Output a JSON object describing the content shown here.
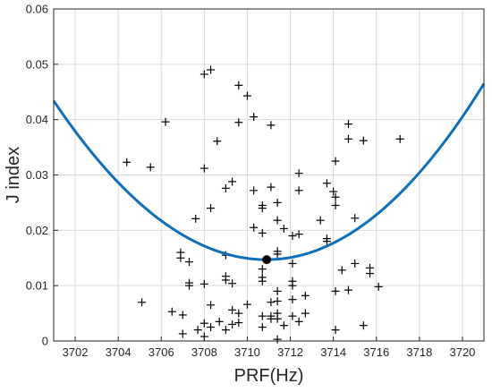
{
  "chart_data": {
    "type": "scatter",
    "title": "",
    "xlabel": "PRF(Hz)",
    "ylabel": "J index",
    "xlim": [
      3701,
      3721
    ],
    "ylim": [
      0,
      0.06
    ],
    "xticks": [
      "3702",
      "3704",
      "3706",
      "3708",
      "3710",
      "3712",
      "3714",
      "3716",
      "3718",
      "3720"
    ],
    "yticks": [
      "0",
      "0.01",
      "0.02",
      "0.03",
      "0.04",
      "0.05",
      "0.06"
    ],
    "grid": true,
    "colors": {
      "curve": "#0e6fb8",
      "marker": "#000000",
      "grid": "#d9d9d9",
      "axis": "#262626"
    },
    "series": [
      {
        "kind": "scatter",
        "marker": "plus",
        "points": [
          [
            3704.4,
            0.0323
          ],
          [
            3705.1,
            0.007
          ],
          [
            3705.5,
            0.0314
          ],
          [
            3706.2,
            0.0396
          ],
          [
            3706.5,
            0.0053
          ],
          [
            3706.9,
            0.016
          ],
          [
            3706.9,
            0.015
          ],
          [
            3707.0,
            0.0013
          ],
          [
            3707.0,
            0.0047
          ],
          [
            3707.3,
            0.0105
          ],
          [
            3707.3,
            0.01
          ],
          [
            3707.3,
            0.0143
          ],
          [
            3707.6,
            0.0221
          ],
          [
            3707.7,
            0.002
          ],
          [
            3708.0,
            0.0482
          ],
          [
            3708.0,
            0.0312
          ],
          [
            3708.0,
            0.0103
          ],
          [
            3708.0,
            0.0032
          ],
          [
            3708.0,
            0.0008
          ],
          [
            3708.3,
            0.049
          ],
          [
            3708.3,
            0.024
          ],
          [
            3708.3,
            0.0065
          ],
          [
            3708.3,
            0.0025
          ],
          [
            3708.6,
            0.0361
          ],
          [
            3708.7,
            0.0035
          ],
          [
            3709.0,
            0.0276
          ],
          [
            3709.0,
            0.0155
          ],
          [
            3709.0,
            0.0117
          ],
          [
            3709.0,
            0.011
          ],
          [
            3709.0,
            0.002
          ],
          [
            3709.3,
            0.0288
          ],
          [
            3709.3,
            0.0104
          ],
          [
            3709.3,
            0.0056
          ],
          [
            3709.3,
            0.003
          ],
          [
            3709.6,
            0.0462
          ],
          [
            3709.6,
            0.0395
          ],
          [
            3709.6,
            0.005
          ],
          [
            3709.6,
            0.0033
          ],
          [
            3710.0,
            0.0443
          ],
          [
            3710.0,
            0.0066
          ],
          [
            3710.3,
            0.0405
          ],
          [
            3710.3,
            0.0272
          ],
          [
            3710.3,
            0.0205
          ],
          [
            3710.7,
            0.0245
          ],
          [
            3710.7,
            0.024
          ],
          [
            3710.7,
            0.0195
          ],
          [
            3710.7,
            0.013
          ],
          [
            3710.7,
            0.0115
          ],
          [
            3710.7,
            0.0108
          ],
          [
            3710.7,
            0.0045
          ],
          [
            3710.7,
            0.0025
          ],
          [
            3711.1,
            0.039
          ],
          [
            3711.1,
            0.0278
          ],
          [
            3711.1,
            0.0045
          ],
          [
            3711.1,
            0.004
          ],
          [
            3711.1,
            0.007
          ],
          [
            3711.4,
            0.025
          ],
          [
            3711.4,
            0.0218
          ],
          [
            3711.4,
            0.0162
          ],
          [
            3711.4,
            0.0157
          ],
          [
            3711.4,
            0.009
          ],
          [
            3711.4,
            0.0072
          ],
          [
            3711.4,
            0.005
          ],
          [
            3711.4,
            0.004
          ],
          [
            3711.4,
            0.0003
          ],
          [
            3711.7,
            0.0203
          ],
          [
            3711.7,
            0.0028
          ],
          [
            3712.1,
            0.019
          ],
          [
            3712.1,
            0.014
          ],
          [
            3712.1,
            0.0108
          ],
          [
            3712.1,
            0.01
          ],
          [
            3712.1,
            0.0075
          ],
          [
            3712.1,
            0.0045
          ],
          [
            3712.4,
            0.0303
          ],
          [
            3712.4,
            0.0272
          ],
          [
            3712.4,
            0.0193
          ],
          [
            3712.4,
            0.0035
          ],
          [
            3712.7,
            0.0082
          ],
          [
            3712.7,
            0.005
          ],
          [
            3713.4,
            0.0218
          ],
          [
            3713.7,
            0.0285
          ],
          [
            3713.7,
            0.0185
          ],
          [
            3713.7,
            0.018
          ],
          [
            3714.0,
            0.027
          ],
          [
            3714.1,
            0.0325
          ],
          [
            3714.1,
            0.026
          ],
          [
            3714.1,
            0.0245
          ],
          [
            3714.1,
            0.009
          ],
          [
            3714.1,
            0.002
          ],
          [
            3714.4,
            0.0128
          ],
          [
            3714.7,
            0.0392
          ],
          [
            3714.7,
            0.0365
          ],
          [
            3714.7,
            0.0092
          ],
          [
            3715.0,
            0.0222
          ],
          [
            3715.0,
            0.014
          ],
          [
            3715.4,
            0.0362
          ],
          [
            3715.4,
            0.0028
          ],
          [
            3715.7,
            0.0132
          ],
          [
            3715.7,
            0.0122
          ],
          [
            3716.1,
            0.0098
          ],
          [
            3717.1,
            0.0365
          ]
        ]
      },
      {
        "kind": "line",
        "fit": "quadratic",
        "vertex": [
          3710.9,
          0.0147
        ],
        "endpoints": [
          [
            3701,
            0.0434
          ],
          [
            3721,
            0.0465
          ]
        ]
      },
      {
        "kind": "point",
        "marker": "filled-circle",
        "points": [
          [
            3710.9,
            0.0147
          ]
        ]
      }
    ]
  }
}
